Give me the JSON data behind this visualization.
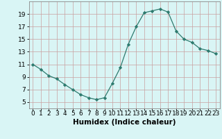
{
  "x": [
    0,
    1,
    2,
    3,
    4,
    5,
    6,
    7,
    8,
    9,
    10,
    11,
    12,
    13,
    14,
    15,
    16,
    17,
    18,
    19,
    20,
    21,
    22,
    23
  ],
  "y": [
    11,
    10.2,
    9.2,
    8.7,
    7.8,
    7.0,
    6.2,
    5.7,
    5.4,
    5.7,
    8.0,
    10.5,
    14.2,
    17.0,
    19.2,
    19.5,
    19.8,
    19.3,
    16.3,
    15.0,
    14.5,
    13.5,
    13.2,
    12.7
  ],
  "line_color": "#2d7a6e",
  "marker": "D",
  "marker_size": 2.2,
  "bg_color": "#d9f5f5",
  "grid_color": "#c8a0a0",
  "xlabel": "Humidex (Indice chaleur)",
  "ylim": [
    4,
    21
  ],
  "xlim": [
    -0.5,
    23.5
  ],
  "yticks": [
    5,
    7,
    9,
    11,
    13,
    15,
    17,
    19
  ],
  "xticks": [
    0,
    1,
    2,
    3,
    4,
    5,
    6,
    7,
    8,
    9,
    10,
    11,
    12,
    13,
    14,
    15,
    16,
    17,
    18,
    19,
    20,
    21,
    22,
    23
  ],
  "xlabel_fontsize": 7.5,
  "tick_fontsize": 6.5
}
